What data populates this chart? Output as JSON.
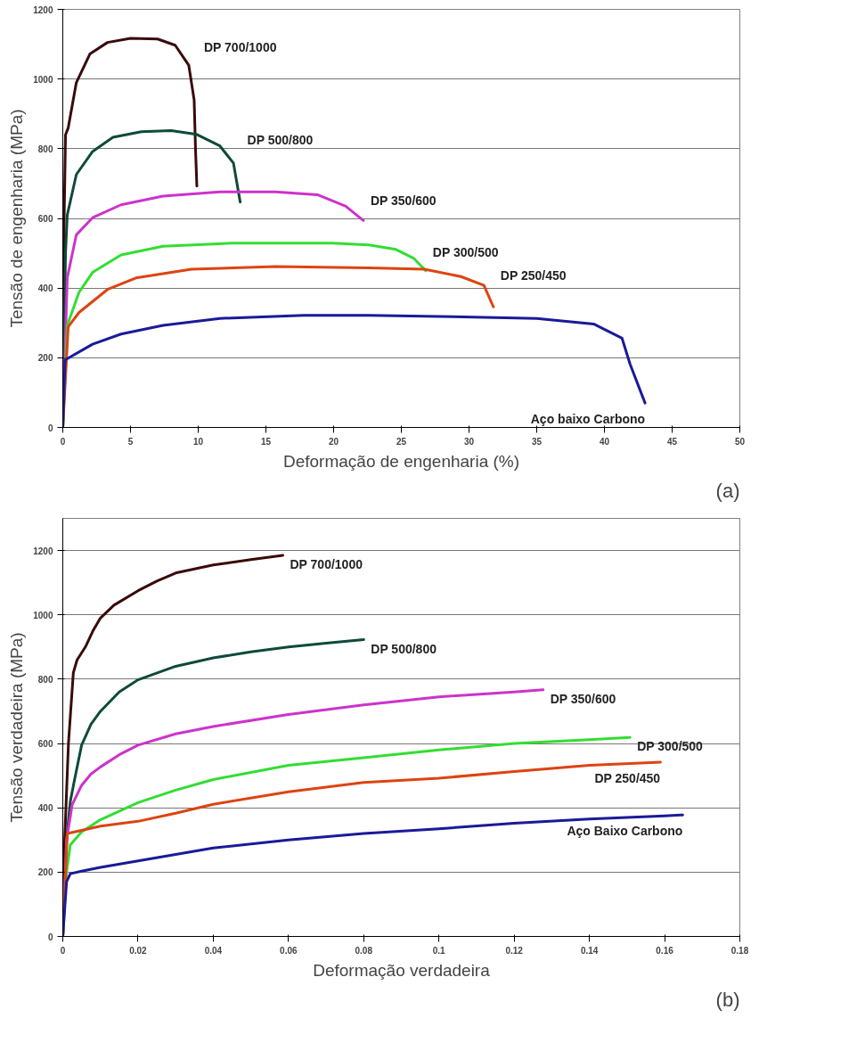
{
  "chart_data": [
    {
      "type": "line",
      "xlabel": "Deformação de engenharia (%)",
      "ylabel": "Tensão de engenharia (MPa)",
      "xlim": [
        0,
        50
      ],
      "ylim": [
        0,
        1200
      ],
      "xticks": [
        0,
        5,
        10,
        15,
        20,
        25,
        30,
        35,
        40,
        45,
        50
      ],
      "yticks": [
        0,
        200,
        400,
        600,
        800,
        1000,
        1200
      ],
      "grid": "y",
      "legend": false,
      "annotations": [
        "(a)"
      ],
      "series": [
        {
          "name": "DP 700/1000",
          "color": "#3a0a0a",
          "x": [
            0,
            0.1,
            0.2,
            0.4,
            1,
            2,
            3.3,
            5,
            7,
            8.3,
            9.3,
            9.7,
            9.8,
            9.9
          ],
          "values": [
            0,
            600,
            840,
            860,
            990,
            1072,
            1105,
            1117,
            1115,
            1097,
            1040,
            940,
            800,
            693
          ]
        },
        {
          "name": "DP 500/800",
          "color": "#0f4a3a",
          "x": [
            0,
            0.2,
            0.33,
            1,
            2.2,
            3.7,
            5.8,
            8,
            9.9,
            11.6,
            12.6,
            13.1
          ],
          "values": [
            0,
            500,
            610,
            726,
            792,
            833,
            849,
            852,
            841,
            808,
            759,
            647
          ]
        },
        {
          "name": "DP 350/600",
          "color": "#cc33cc",
          "x": [
            0,
            0.33,
            1,
            2.2,
            4.3,
            7.4,
            11.6,
            15.7,
            18.8,
            20.9,
            22.2
          ],
          "values": [
            0,
            430,
            553,
            602,
            639,
            664,
            676,
            676,
            668,
            635,
            594
          ]
        },
        {
          "name": "DP 300/500",
          "color": "#33dd33",
          "x": [
            0,
            0.33,
            1.2,
            2.2,
            4.3,
            7.4,
            12.6,
            19.9,
            22.6,
            24.6,
            25.9,
            26.8
          ],
          "values": [
            0,
            293,
            388,
            445,
            495,
            520,
            529,
            529,
            524,
            511,
            486,
            450
          ]
        },
        {
          "name": "DP 250/450",
          "color": "#dd4411",
          "x": [
            0,
            0.4,
            1.2,
            3.3,
            5.4,
            9.5,
            15.7,
            22.6,
            26.7,
            29.4,
            31.1,
            31.8
          ],
          "values": [
            0,
            289,
            330,
            396,
            429,
            454,
            462,
            458,
            454,
            433,
            408,
            346
          ]
        },
        {
          "name": "Aço baixo Carbono",
          "color": "#1a1a99",
          "x": [
            0,
            0.17,
            2.2,
            4.3,
            7.4,
            11.6,
            17.8,
            22.6,
            28.8,
            35,
            39.2,
            41.3,
            41.9,
            43
          ],
          "values": [
            0,
            194,
            239,
            268,
            293,
            313,
            322,
            322,
            318,
            313,
            297,
            256,
            181,
            70
          ]
        }
      ]
    },
    {
      "type": "line",
      "xlabel": "Deformação verdadeira",
      "ylabel": "Tensão verdadeira (MPa)",
      "xlim": [
        0,
        0.18
      ],
      "ylim": [
        0,
        1300
      ],
      "xticks": [
        0,
        0.02,
        0.04,
        0.06,
        0.08,
        0.1,
        0.12,
        0.14,
        0.16,
        0.18
      ],
      "yticks": [
        0,
        200,
        400,
        600,
        800,
        1000,
        1200
      ],
      "grid": "y",
      "legend": false,
      "annotations": [
        "(b)"
      ],
      "series": [
        {
          "name": "DP 700/1000",
          "color": "#3a0a0a",
          "x": [
            0,
            0.0005,
            0.0015,
            0.0028,
            0.0038,
            0.006,
            0.008,
            0.01,
            0.0136,
            0.02,
            0.025,
            0.03,
            0.04,
            0.05,
            0.0585
          ],
          "values": [
            0,
            300,
            600,
            820,
            860,
            900,
            950,
            990,
            1030,
            1075,
            1105,
            1130,
            1155,
            1172,
            1185
          ]
        },
        {
          "name": "DP 500/800",
          "color": "#0f4a3a",
          "x": [
            0,
            0.001,
            0.002,
            0.003,
            0.005,
            0.0075,
            0.01,
            0.015,
            0.02,
            0.03,
            0.04,
            0.05,
            0.06,
            0.07,
            0.08
          ],
          "values": [
            0,
            300,
            420,
            480,
            595,
            660,
            700,
            760,
            798,
            840,
            866,
            885,
            900,
            912,
            923
          ]
        },
        {
          "name": "DP 350/600",
          "color": "#cc33cc",
          "x": [
            0,
            0.001,
            0.0025,
            0.005,
            0.0075,
            0.01,
            0.015,
            0.02,
            0.03,
            0.04,
            0.06,
            0.08,
            0.1,
            0.12,
            0.1277
          ],
          "values": [
            0,
            300,
            410,
            470,
            505,
            527,
            565,
            595,
            630,
            653,
            690,
            720,
            745,
            760,
            767
          ]
        },
        {
          "name": "DP 300/500",
          "color": "#33dd33",
          "x": [
            0,
            0.001,
            0.002,
            0.005,
            0.01,
            0.02,
            0.03,
            0.04,
            0.06,
            0.08,
            0.1,
            0.12,
            0.14,
            0.1508
          ],
          "values": [
            0,
            200,
            285,
            325,
            363,
            416,
            455,
            488,
            532,
            556,
            580,
            600,
            612,
            619
          ]
        },
        {
          "name": "DP 250/450",
          "color": "#dd4411",
          "x": [
            0,
            0.0012,
            0.005,
            0.01,
            0.02,
            0.03,
            0.04,
            0.06,
            0.08,
            0.1,
            0.12,
            0.14,
            0.1589
          ],
          "values": [
            0,
            320,
            330,
            343,
            358,
            383,
            411,
            450,
            479,
            492,
            513,
            532,
            542
          ]
        },
        {
          "name": "Aço Baixo Carbono",
          "color": "#1a1a99",
          "x": [
            0,
            0.001,
            0.002,
            0.005,
            0.01,
            0.02,
            0.03,
            0.04,
            0.06,
            0.08,
            0.1,
            0.12,
            0.14,
            0.16,
            0.1648
          ],
          "values": [
            0,
            170,
            195,
            203,
            215,
            235,
            255,
            275,
            300,
            320,
            335,
            352,
            365,
            375,
            378
          ]
        }
      ]
    }
  ]
}
